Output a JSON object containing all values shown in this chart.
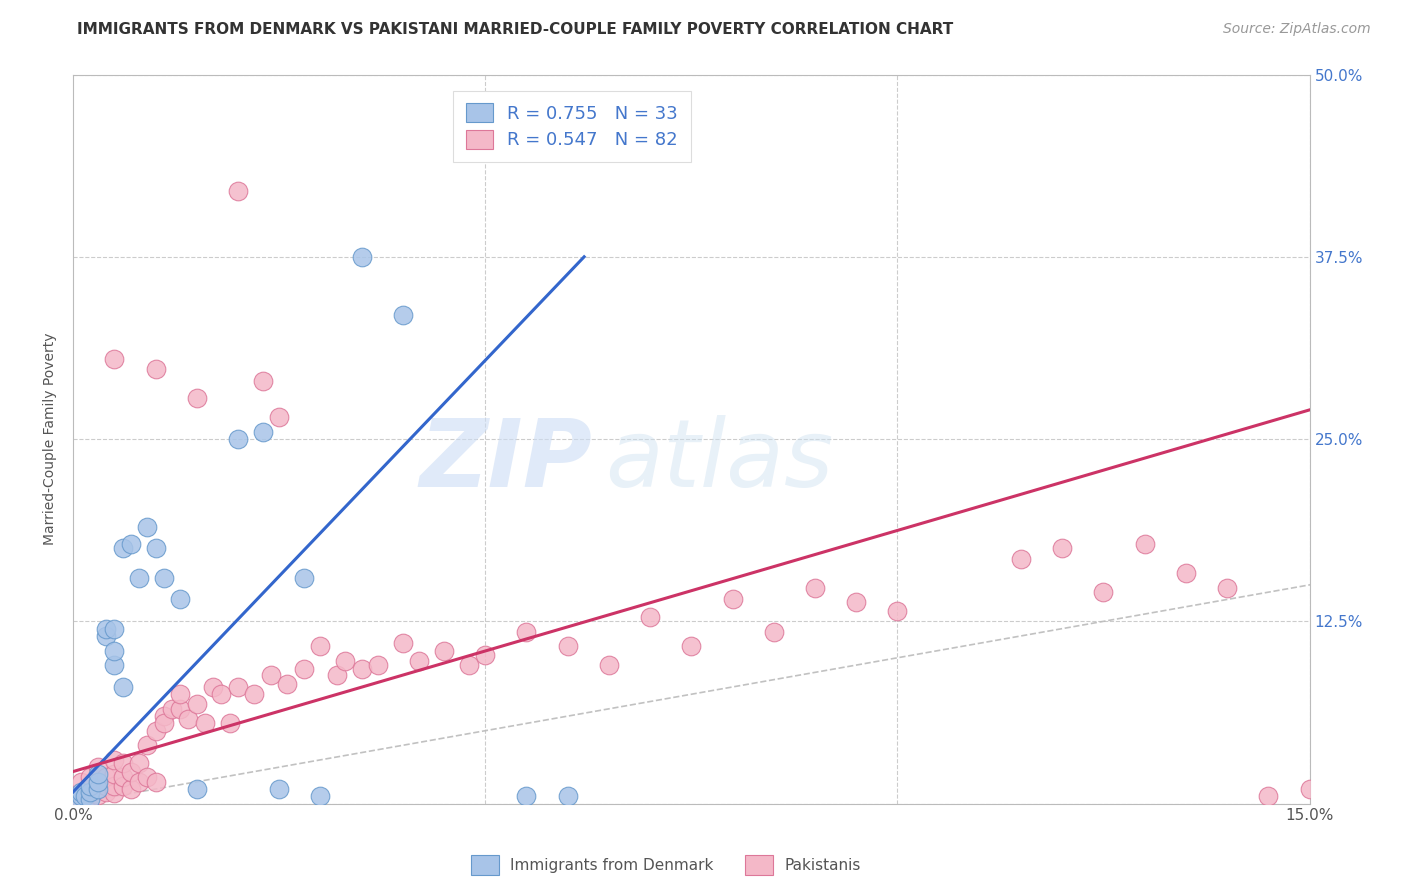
{
  "title": "IMMIGRANTS FROM DENMARK VS PAKISTANI MARRIED-COUPLE FAMILY POVERTY CORRELATION CHART",
  "source": "Source: ZipAtlas.com",
  "ylabel": "Married-Couple Family Poverty",
  "xlim": [
    0.0,
    0.15
  ],
  "ylim": [
    0.0,
    0.5
  ],
  "xticks": [
    0.0,
    0.05,
    0.1,
    0.15
  ],
  "xtick_labels": [
    "0.0%",
    "",
    "",
    "15.0%"
  ],
  "yticks": [
    0.0,
    0.125,
    0.25,
    0.375,
    0.5
  ],
  "right_ytick_labels": [
    "",
    "12.5%",
    "25.0%",
    "37.5%",
    "50.0%"
  ],
  "blue_R": 0.755,
  "blue_N": 33,
  "pink_R": 0.547,
  "pink_N": 82,
  "blue_scatter_color": "#a8c4e8",
  "pink_scatter_color": "#f4b8c8",
  "blue_edge_color": "#6699cc",
  "pink_edge_color": "#dd7799",
  "blue_line_color": "#3366cc",
  "pink_line_color": "#cc3366",
  "ref_line_color": "#bbbbbb",
  "legend_blue_label": "Immigrants from Denmark",
  "legend_pink_label": "Pakistanis",
  "legend_text_color": "#4477cc",
  "blue_scatter_x": [
    0.0005,
    0.001,
    0.001,
    0.0015,
    0.002,
    0.002,
    0.002,
    0.003,
    0.003,
    0.003,
    0.004,
    0.004,
    0.005,
    0.005,
    0.005,
    0.006,
    0.006,
    0.007,
    0.008,
    0.009,
    0.01,
    0.011,
    0.013,
    0.015,
    0.02,
    0.023,
    0.025,
    0.028,
    0.03,
    0.035,
    0.04,
    0.055,
    0.06
  ],
  "blue_scatter_y": [
    0.002,
    0.005,
    0.008,
    0.005,
    0.003,
    0.008,
    0.012,
    0.01,
    0.015,
    0.02,
    0.115,
    0.12,
    0.095,
    0.105,
    0.12,
    0.08,
    0.175,
    0.178,
    0.155,
    0.19,
    0.175,
    0.155,
    0.14,
    0.01,
    0.25,
    0.255,
    0.01,
    0.155,
    0.005,
    0.375,
    0.335,
    0.005,
    0.005
  ],
  "pink_scatter_x": [
    0.0003,
    0.0005,
    0.001,
    0.001,
    0.001,
    0.001,
    0.002,
    0.002,
    0.002,
    0.002,
    0.003,
    0.003,
    0.003,
    0.003,
    0.004,
    0.004,
    0.004,
    0.005,
    0.005,
    0.005,
    0.005,
    0.006,
    0.006,
    0.006,
    0.007,
    0.007,
    0.008,
    0.008,
    0.009,
    0.009,
    0.01,
    0.01,
    0.011,
    0.011,
    0.012,
    0.013,
    0.013,
    0.014,
    0.015,
    0.016,
    0.017,
    0.018,
    0.019,
    0.02,
    0.022,
    0.023,
    0.024,
    0.025,
    0.026,
    0.028,
    0.03,
    0.032,
    0.033,
    0.035,
    0.037,
    0.04,
    0.042,
    0.045,
    0.048,
    0.05,
    0.055,
    0.06,
    0.065,
    0.07,
    0.075,
    0.08,
    0.085,
    0.09,
    0.095,
    0.1,
    0.115,
    0.12,
    0.125,
    0.13,
    0.135,
    0.14,
    0.145,
    0.15,
    0.005,
    0.01,
    0.015,
    0.02
  ],
  "pink_scatter_y": [
    0.004,
    0.005,
    0.006,
    0.007,
    0.008,
    0.015,
    0.005,
    0.007,
    0.01,
    0.018,
    0.006,
    0.01,
    0.015,
    0.025,
    0.008,
    0.012,
    0.018,
    0.007,
    0.012,
    0.02,
    0.03,
    0.012,
    0.018,
    0.028,
    0.01,
    0.022,
    0.015,
    0.028,
    0.018,
    0.04,
    0.015,
    0.05,
    0.06,
    0.055,
    0.065,
    0.065,
    0.075,
    0.058,
    0.068,
    0.055,
    0.08,
    0.075,
    0.055,
    0.08,
    0.075,
    0.29,
    0.088,
    0.265,
    0.082,
    0.092,
    0.108,
    0.088,
    0.098,
    0.092,
    0.095,
    0.11,
    0.098,
    0.105,
    0.095,
    0.102,
    0.118,
    0.108,
    0.095,
    0.128,
    0.108,
    0.14,
    0.118,
    0.148,
    0.138,
    0.132,
    0.168,
    0.175,
    0.145,
    0.178,
    0.158,
    0.148,
    0.005,
    0.01,
    0.305,
    0.298,
    0.278,
    0.42
  ],
  "blue_line_x": [
    0.0,
    0.062
  ],
  "blue_line_y": [
    0.008,
    0.375
  ],
  "pink_line_x": [
    0.0,
    0.15
  ],
  "pink_line_y": [
    0.022,
    0.27
  ],
  "ref_line_x": [
    0.0,
    0.5
  ],
  "ref_line_y": [
    0.0,
    0.5
  ],
  "watermark_zip": "ZIP",
  "watermark_atlas": "atlas",
  "background_color": "#ffffff",
  "grid_color": "#cccccc",
  "title_fontsize": 11,
  "source_fontsize": 10,
  "tick_fontsize": 11,
  "ylabel_fontsize": 10
}
